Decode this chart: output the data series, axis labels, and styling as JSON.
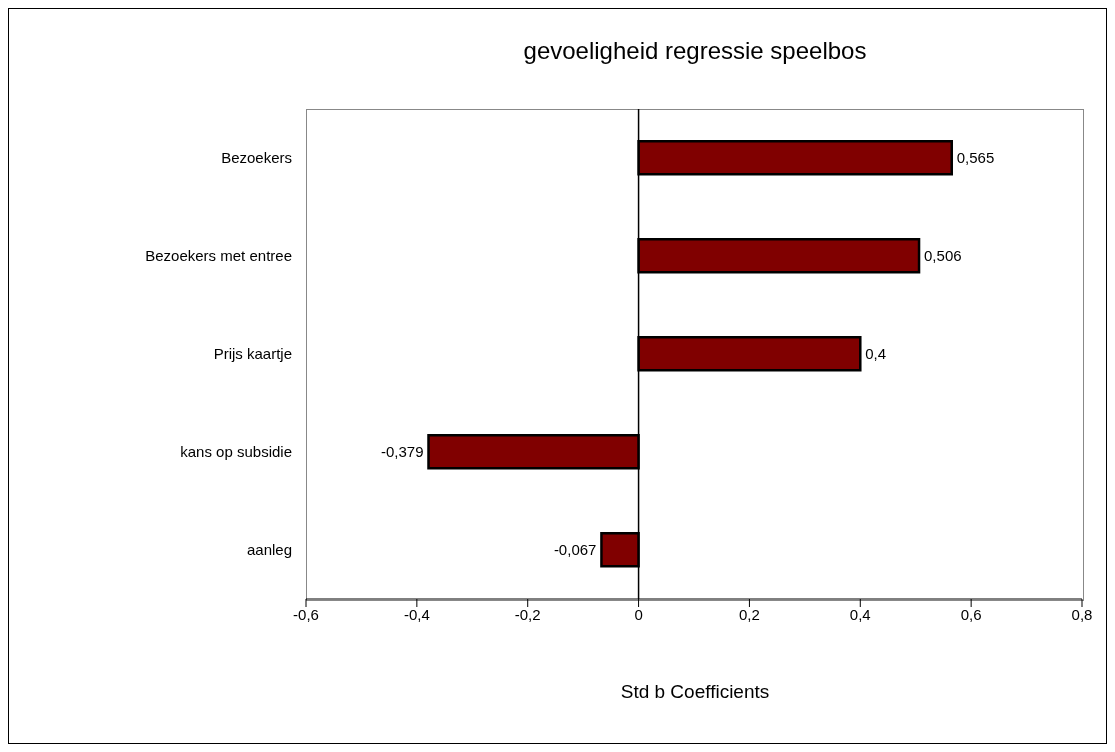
{
  "chart_data": {
    "type": "bar",
    "orientation": "horizontal",
    "title": "gevoeligheid regressie speelbos",
    "xlabel": "Std b Coefficients",
    "categories": [
      "Bezoekers",
      "Bezoekers met entree",
      "Prijs kaartje",
      "kans op subsidie",
      "aanleg"
    ],
    "values": [
      0.565,
      0.506,
      0.4,
      -0.379,
      -0.067
    ],
    "value_labels": [
      "0,565",
      "0,506",
      "0,4",
      "-0,379",
      "-0,067"
    ],
    "color": "#800000",
    "xlim": [
      -0.6,
      0.8
    ],
    "xticks": [
      {
        "value": -0.6,
        "label": "-0,6"
      },
      {
        "value": -0.4,
        "label": "-0,4"
      },
      {
        "value": -0.2,
        "label": "-0,2"
      },
      {
        "value": 0,
        "label": "0"
      },
      {
        "value": 0.2,
        "label": "0,2"
      },
      {
        "value": 0.4,
        "label": "0,4"
      },
      {
        "value": 0.6,
        "label": "0,6"
      },
      {
        "value": 0.8,
        "label": "0,8"
      }
    ],
    "ref_lines": [
      {
        "axis": "x",
        "value": 0,
        "color": "#000000"
      }
    ],
    "grid": false,
    "legend": false
  }
}
